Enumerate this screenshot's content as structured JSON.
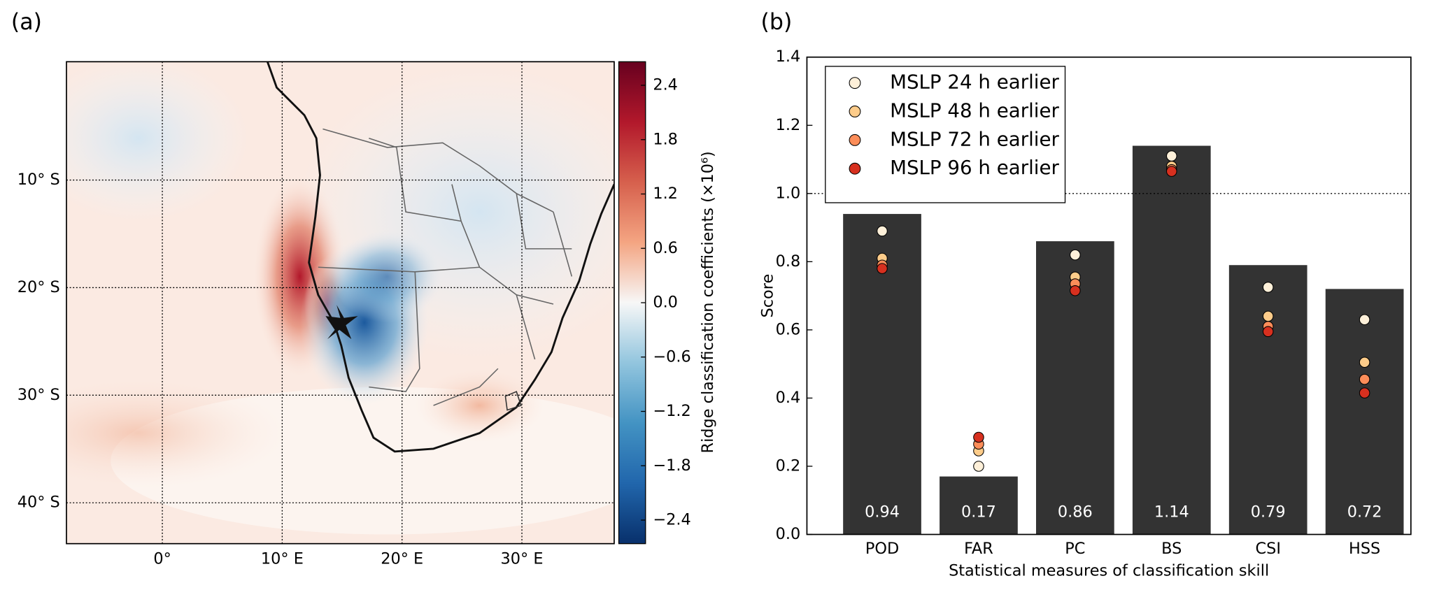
{
  "chart_data": [
    {
      "type": "map",
      "panel_label": "(a)",
      "xlim": [
        -8,
        37.7
      ],
      "xticks": [
        {
          "value": 0,
          "label": "0°"
        },
        {
          "value": 10,
          "label": "10° E"
        },
        {
          "value": 20,
          "label": "20° E"
        },
        {
          "value": 30,
          "label": "30° E"
        }
      ],
      "ylim": [
        -43.8,
        1
      ],
      "yticks": [
        {
          "value": -10,
          "label": "10° S"
        },
        {
          "value": -20,
          "label": "20° S"
        },
        {
          "value": -30,
          "label": "30° S"
        },
        {
          "value": -40,
          "label": "40° S"
        }
      ],
      "grid": true,
      "colorbar": {
        "label": "Ridge classification coefficients (×10⁶)",
        "clim": [
          -2.66,
          2.66
        ],
        "colors": [
          "#08306b",
          "#2166ac",
          "#4393c3",
          "#92c5de",
          "#f7f7f7",
          "#f4a582",
          "#d6604d",
          "#b2182b",
          "#67001f"
        ],
        "ticks": [
          2.4,
          1.8,
          1.2,
          0.6,
          {
            "value": 0,
            "label": "0.0"
          },
          {
            "value": -0.6,
            "label": "−0.6"
          },
          {
            "value": -1.2,
            "label": "−1.2"
          },
          {
            "value": -1.8,
            "label": "−1.8"
          },
          {
            "value": -2.4,
            "label": "−2.4"
          }
        ]
      }
    },
    {
      "type": "bar",
      "panel_label": "(b)",
      "categories": [
        "POD",
        "FAR",
        "PC",
        "BS",
        "CSI",
        "HSS"
      ],
      "values": [
        0.94,
        0.17,
        0.86,
        1.14,
        0.79,
        0.72
      ],
      "color": "#333333",
      "series": [
        {
          "name": "MSLP 24 h earlier",
          "color": "#fef0d9",
          "values": [
            0.89,
            0.2,
            0.82,
            1.11,
            0.725,
            0.63
          ]
        },
        {
          "name": "MSLP 48 h earlier",
          "color": "#fdcc8a",
          "values": [
            0.81,
            0.245,
            0.755,
            1.08,
            0.64,
            0.505
          ]
        },
        {
          "name": "MSLP 72 h earlier",
          "color": "#fc8d59",
          "values": [
            0.79,
            0.265,
            0.735,
            1.07,
            0.61,
            0.455
          ]
        },
        {
          "name": "MSLP 96 h earlier",
          "color": "#d7301f",
          "values": [
            0.78,
            0.285,
            0.715,
            1.065,
            0.595,
            0.415
          ]
        }
      ],
      "ylim": [
        0,
        1.4
      ],
      "yticks": [
        {
          "value": 0,
          "label": "0.0"
        },
        0.2,
        0.4,
        0.6,
        0.8,
        {
          "value": 1,
          "label": "1.0"
        },
        1.2,
        1.4
      ],
      "reference_line": 1,
      "xlabel": "Statistical measures of classification skill",
      "ylabel": "Score",
      "legend": "upper left"
    }
  ]
}
